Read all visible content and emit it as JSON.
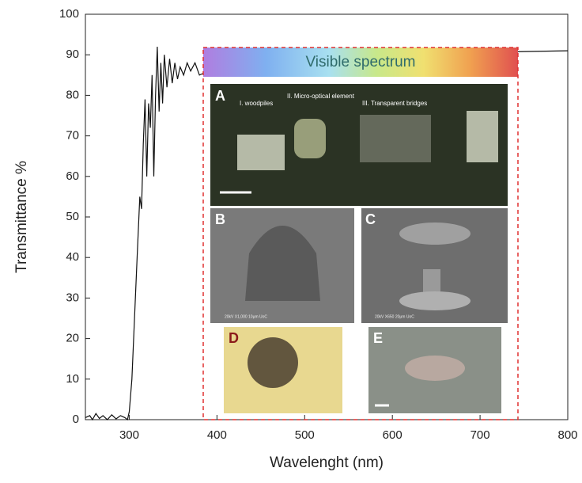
{
  "chart_data": {
    "type": "line",
    "xlabel": "Wavelenght (nm)",
    "ylabel": "Transmittance %",
    "xlim": [
      250,
      800
    ],
    "ylim": [
      0,
      100
    ],
    "xticks": [
      300,
      400,
      500,
      600,
      700,
      800
    ],
    "yticks": [
      0,
      10,
      20,
      30,
      40,
      50,
      60,
      70,
      80,
      90,
      100
    ],
    "series": [
      {
        "color": "#111111",
        "x": [
          250,
          255,
          258,
          262,
          266,
          270,
          275,
          280,
          285,
          290,
          295,
          298,
          300,
          303,
          306,
          309,
          312,
          314,
          316,
          318,
          320,
          322,
          324,
          326,
          328,
          330,
          332,
          334,
          336,
          338,
          340,
          343,
          346,
          349,
          352,
          355,
          358,
          362,
          366,
          370,
          375,
          380,
          390,
          400,
          450,
          500,
          550,
          600,
          650,
          700,
          750,
          800
        ],
        "values": [
          0.5,
          1,
          0,
          1.5,
          0.3,
          1,
          0,
          1.2,
          0.2,
          1,
          0.5,
          0,
          2,
          10,
          25,
          40,
          55,
          52,
          68,
          79,
          60,
          78,
          72,
          85,
          60,
          80,
          92,
          76,
          88,
          78,
          90,
          82,
          89,
          83,
          88,
          84,
          87,
          85,
          88,
          86,
          88,
          85,
          86,
          86.5,
          87.5,
          88.5,
          89.5,
          90,
          90.2,
          90.5,
          90.8,
          91
        ]
      }
    ],
    "inset": {
      "band_label": "Visible spectrum",
      "panels": {
        "a": "A",
        "a_items": [
          "I. woodpiles",
          "II. Micro-optical element",
          "III. Transparent bridges"
        ],
        "b": "B",
        "b_scale": "20kV   X1,000   10μm   UoC",
        "c": "C",
        "c_scale": "20kV   X650   20μm   UoC",
        "d": "D",
        "e": "E"
      }
    }
  }
}
